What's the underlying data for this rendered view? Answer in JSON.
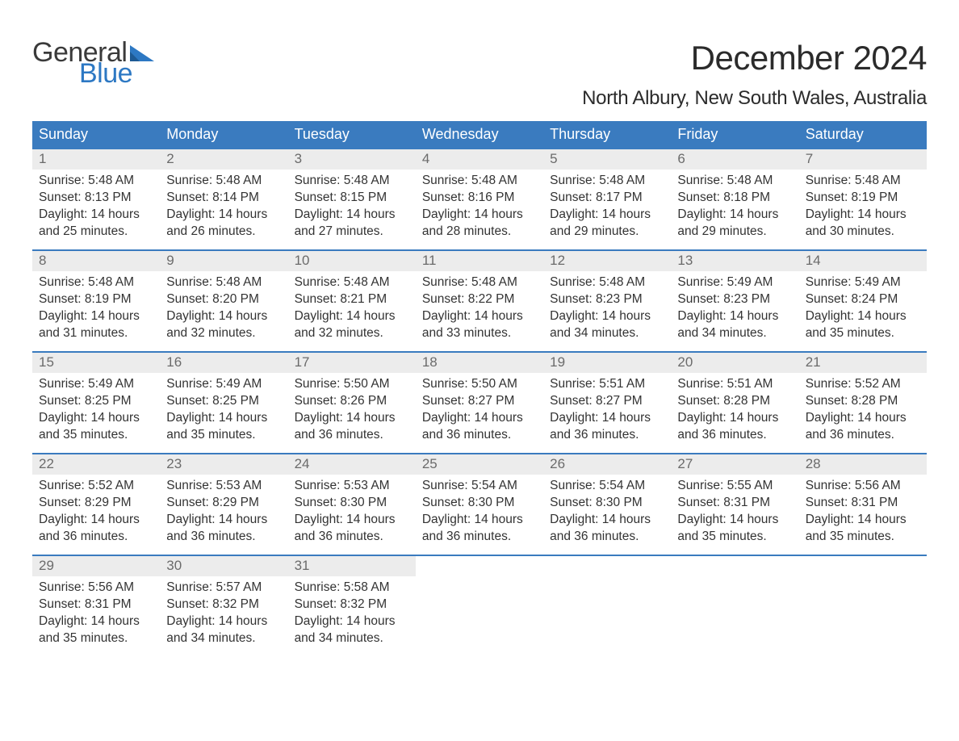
{
  "brand": {
    "name_part1": "General",
    "name_part2": "Blue",
    "flag_color": "#2d78c3",
    "text_color_dark": "#3a3a3a",
    "text_color_blue": "#2d78c3"
  },
  "title": "December 2024",
  "location": "North Albury, New South Wales, Australia",
  "colors": {
    "header_bg": "#3a7bbf",
    "header_text": "#ffffff",
    "day_num_bg": "#ececec",
    "day_num_text": "#6b6b6b",
    "body_text": "#333333",
    "week_border": "#3a7bbf",
    "page_bg": "#ffffff"
  },
  "typography": {
    "title_fontsize": 42,
    "location_fontsize": 24,
    "weekday_fontsize": 18,
    "daynum_fontsize": 17,
    "body_fontsize": 15.5,
    "font_family": "Arial"
  },
  "weekdays": [
    "Sunday",
    "Monday",
    "Tuesday",
    "Wednesday",
    "Thursday",
    "Friday",
    "Saturday"
  ],
  "weeks": [
    [
      {
        "n": "1",
        "sunrise": "Sunrise: 5:48 AM",
        "sunset": "Sunset: 8:13 PM",
        "d1": "Daylight: 14 hours",
        "d2": "and 25 minutes."
      },
      {
        "n": "2",
        "sunrise": "Sunrise: 5:48 AM",
        "sunset": "Sunset: 8:14 PM",
        "d1": "Daylight: 14 hours",
        "d2": "and 26 minutes."
      },
      {
        "n": "3",
        "sunrise": "Sunrise: 5:48 AM",
        "sunset": "Sunset: 8:15 PM",
        "d1": "Daylight: 14 hours",
        "d2": "and 27 minutes."
      },
      {
        "n": "4",
        "sunrise": "Sunrise: 5:48 AM",
        "sunset": "Sunset: 8:16 PM",
        "d1": "Daylight: 14 hours",
        "d2": "and 28 minutes."
      },
      {
        "n": "5",
        "sunrise": "Sunrise: 5:48 AM",
        "sunset": "Sunset: 8:17 PM",
        "d1": "Daylight: 14 hours",
        "d2": "and 29 minutes."
      },
      {
        "n": "6",
        "sunrise": "Sunrise: 5:48 AM",
        "sunset": "Sunset: 8:18 PM",
        "d1": "Daylight: 14 hours",
        "d2": "and 29 minutes."
      },
      {
        "n": "7",
        "sunrise": "Sunrise: 5:48 AM",
        "sunset": "Sunset: 8:19 PM",
        "d1": "Daylight: 14 hours",
        "d2": "and 30 minutes."
      }
    ],
    [
      {
        "n": "8",
        "sunrise": "Sunrise: 5:48 AM",
        "sunset": "Sunset: 8:19 PM",
        "d1": "Daylight: 14 hours",
        "d2": "and 31 minutes."
      },
      {
        "n": "9",
        "sunrise": "Sunrise: 5:48 AM",
        "sunset": "Sunset: 8:20 PM",
        "d1": "Daylight: 14 hours",
        "d2": "and 32 minutes."
      },
      {
        "n": "10",
        "sunrise": "Sunrise: 5:48 AM",
        "sunset": "Sunset: 8:21 PM",
        "d1": "Daylight: 14 hours",
        "d2": "and 32 minutes."
      },
      {
        "n": "11",
        "sunrise": "Sunrise: 5:48 AM",
        "sunset": "Sunset: 8:22 PM",
        "d1": "Daylight: 14 hours",
        "d2": "and 33 minutes."
      },
      {
        "n": "12",
        "sunrise": "Sunrise: 5:48 AM",
        "sunset": "Sunset: 8:23 PM",
        "d1": "Daylight: 14 hours",
        "d2": "and 34 minutes."
      },
      {
        "n": "13",
        "sunrise": "Sunrise: 5:49 AM",
        "sunset": "Sunset: 8:23 PM",
        "d1": "Daylight: 14 hours",
        "d2": "and 34 minutes."
      },
      {
        "n": "14",
        "sunrise": "Sunrise: 5:49 AM",
        "sunset": "Sunset: 8:24 PM",
        "d1": "Daylight: 14 hours",
        "d2": "and 35 minutes."
      }
    ],
    [
      {
        "n": "15",
        "sunrise": "Sunrise: 5:49 AM",
        "sunset": "Sunset: 8:25 PM",
        "d1": "Daylight: 14 hours",
        "d2": "and 35 minutes."
      },
      {
        "n": "16",
        "sunrise": "Sunrise: 5:49 AM",
        "sunset": "Sunset: 8:25 PM",
        "d1": "Daylight: 14 hours",
        "d2": "and 35 minutes."
      },
      {
        "n": "17",
        "sunrise": "Sunrise: 5:50 AM",
        "sunset": "Sunset: 8:26 PM",
        "d1": "Daylight: 14 hours",
        "d2": "and 36 minutes."
      },
      {
        "n": "18",
        "sunrise": "Sunrise: 5:50 AM",
        "sunset": "Sunset: 8:27 PM",
        "d1": "Daylight: 14 hours",
        "d2": "and 36 minutes."
      },
      {
        "n": "19",
        "sunrise": "Sunrise: 5:51 AM",
        "sunset": "Sunset: 8:27 PM",
        "d1": "Daylight: 14 hours",
        "d2": "and 36 minutes."
      },
      {
        "n": "20",
        "sunrise": "Sunrise: 5:51 AM",
        "sunset": "Sunset: 8:28 PM",
        "d1": "Daylight: 14 hours",
        "d2": "and 36 minutes."
      },
      {
        "n": "21",
        "sunrise": "Sunrise: 5:52 AM",
        "sunset": "Sunset: 8:28 PM",
        "d1": "Daylight: 14 hours",
        "d2": "and 36 minutes."
      }
    ],
    [
      {
        "n": "22",
        "sunrise": "Sunrise: 5:52 AM",
        "sunset": "Sunset: 8:29 PM",
        "d1": "Daylight: 14 hours",
        "d2": "and 36 minutes."
      },
      {
        "n": "23",
        "sunrise": "Sunrise: 5:53 AM",
        "sunset": "Sunset: 8:29 PM",
        "d1": "Daylight: 14 hours",
        "d2": "and 36 minutes."
      },
      {
        "n": "24",
        "sunrise": "Sunrise: 5:53 AM",
        "sunset": "Sunset: 8:30 PM",
        "d1": "Daylight: 14 hours",
        "d2": "and 36 minutes."
      },
      {
        "n": "25",
        "sunrise": "Sunrise: 5:54 AM",
        "sunset": "Sunset: 8:30 PM",
        "d1": "Daylight: 14 hours",
        "d2": "and 36 minutes."
      },
      {
        "n": "26",
        "sunrise": "Sunrise: 5:54 AM",
        "sunset": "Sunset: 8:30 PM",
        "d1": "Daylight: 14 hours",
        "d2": "and 36 minutes."
      },
      {
        "n": "27",
        "sunrise": "Sunrise: 5:55 AM",
        "sunset": "Sunset: 8:31 PM",
        "d1": "Daylight: 14 hours",
        "d2": "and 35 minutes."
      },
      {
        "n": "28",
        "sunrise": "Sunrise: 5:56 AM",
        "sunset": "Sunset: 8:31 PM",
        "d1": "Daylight: 14 hours",
        "d2": "and 35 minutes."
      }
    ],
    [
      {
        "n": "29",
        "sunrise": "Sunrise: 5:56 AM",
        "sunset": "Sunset: 8:31 PM",
        "d1": "Daylight: 14 hours",
        "d2": "and 35 minutes."
      },
      {
        "n": "30",
        "sunrise": "Sunrise: 5:57 AM",
        "sunset": "Sunset: 8:32 PM",
        "d1": "Daylight: 14 hours",
        "d2": "and 34 minutes."
      },
      {
        "n": "31",
        "sunrise": "Sunrise: 5:58 AM",
        "sunset": "Sunset: 8:32 PM",
        "d1": "Daylight: 14 hours",
        "d2": "and 34 minutes."
      },
      {
        "empty": true
      },
      {
        "empty": true
      },
      {
        "empty": true
      },
      {
        "empty": true
      }
    ]
  ]
}
